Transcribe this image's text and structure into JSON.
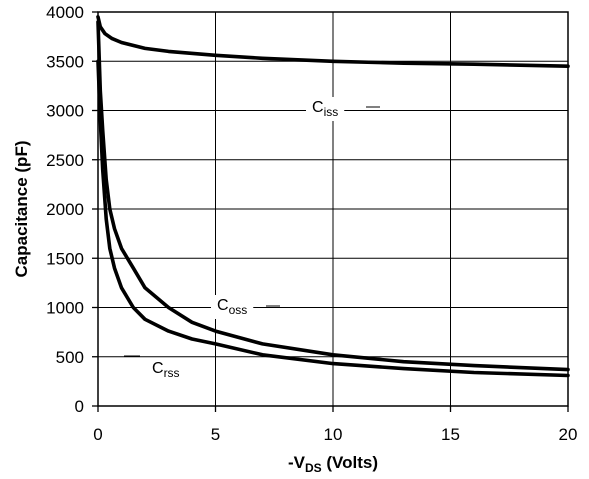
{
  "chart_data": {
    "type": "line",
    "xlabel": {
      "prefix": "-V",
      "sub": "DS",
      "suffix": " (Volts)"
    },
    "ylabel": "Capacitance (pF)",
    "xlim": [
      0,
      20
    ],
    "ylim": [
      0,
      4000
    ],
    "xticks": [
      0,
      5,
      10,
      15,
      20
    ],
    "yticks": [
      0,
      500,
      1000,
      1500,
      2000,
      2500,
      3000,
      3500,
      4000
    ],
    "grid": true,
    "series": [
      {
        "name": "Ciss",
        "label": {
          "main": "C",
          "sub": "iss"
        },
        "x": [
          0,
          0.1,
          0.3,
          0.6,
          1,
          2,
          3,
          5,
          7,
          10,
          13,
          16,
          20
        ],
        "y": [
          3950,
          3850,
          3780,
          3730,
          3690,
          3630,
          3600,
          3560,
          3530,
          3500,
          3480,
          3470,
          3450
        ]
      },
      {
        "name": "Coss",
        "label": {
          "main": "C",
          "sub": "oss"
        },
        "x": [
          0,
          0.1,
          0.2,
          0.35,
          0.5,
          0.7,
          1,
          1.5,
          2,
          3,
          4,
          5,
          7,
          10,
          13,
          16,
          20
        ],
        "y": [
          3900,
          3200,
          2800,
          2300,
          2000,
          1800,
          1600,
          1400,
          1200,
          1000,
          850,
          760,
          630,
          520,
          450,
          410,
          370
        ]
      },
      {
        "name": "Crss",
        "label": {
          "main": "C",
          "sub": "rss"
        },
        "x": [
          0,
          0.1,
          0.2,
          0.35,
          0.5,
          0.7,
          1,
          1.5,
          2,
          3,
          4,
          5,
          7,
          10,
          13,
          16,
          20
        ],
        "y": [
          3500,
          2900,
          2400,
          1900,
          1600,
          1400,
          1200,
          1000,
          880,
          760,
          680,
          630,
          520,
          430,
          380,
          340,
          310
        ]
      }
    ]
  }
}
